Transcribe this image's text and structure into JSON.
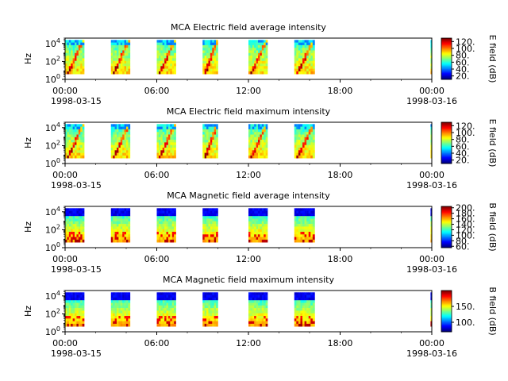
{
  "figure": {
    "x_tick_labels": [
      "00:00",
      "06:00",
      "12:00",
      "18:00",
      "00:00"
    ],
    "x_date_labels": [
      "1998-03-15",
      "1998-03-16"
    ],
    "ylabel": "Hz",
    "y_tick_labels": [
      "10^0",
      "10^2",
      "10^4"
    ]
  },
  "chart_data": [
    {
      "type": "heatmap",
      "title": "MCA  Electric field average intensity",
      "x_range": [
        "1998-03-15 00:00",
        "1998-03-16 00:00"
      ],
      "y_scale": "log",
      "y_range": [
        1,
        40000
      ],
      "ylabel": "Hz",
      "colorbar": {
        "label": "E field (dB)",
        "ticks": [
          20,
          40,
          60,
          80,
          100,
          120
        ],
        "range": [
          10,
          130
        ]
      },
      "passes": [
        {
          "start": "1998-03-15 00:00",
          "end": "1998-03-15 01:15"
        },
        {
          "start": "1998-03-15 03:00",
          "end": "1998-03-15 04:15"
        },
        {
          "start": "1998-03-15 06:00",
          "end": "1998-03-15 07:15"
        },
        {
          "start": "1998-03-15 09:00",
          "end": "1998-03-15 10:00"
        },
        {
          "start": "1998-03-15 12:00",
          "end": "1998-03-15 13:15"
        },
        {
          "start": "1998-03-15 15:00",
          "end": "1998-03-15 16:20"
        },
        {
          "start": "1998-03-15 23:55",
          "end": "1998-03-16 00:00"
        }
      ],
      "style": "electric"
    },
    {
      "type": "heatmap",
      "title": "MCA  Electric field maximum intensity",
      "x_range": [
        "1998-03-15 00:00",
        "1998-03-16 00:00"
      ],
      "y_scale": "log",
      "y_range": [
        1,
        40000
      ],
      "ylabel": "Hz",
      "colorbar": {
        "label": "E field (dB)",
        "ticks": [
          20,
          40,
          60,
          80,
          100,
          120
        ],
        "range": [
          10,
          130
        ]
      },
      "passes": [
        {
          "start": "1998-03-15 00:00",
          "end": "1998-03-15 01:15"
        },
        {
          "start": "1998-03-15 03:00",
          "end": "1998-03-15 04:15"
        },
        {
          "start": "1998-03-15 06:00",
          "end": "1998-03-15 07:15"
        },
        {
          "start": "1998-03-15 09:00",
          "end": "1998-03-15 10:00"
        },
        {
          "start": "1998-03-15 12:00",
          "end": "1998-03-15 13:15"
        },
        {
          "start": "1998-03-15 15:00",
          "end": "1998-03-15 16:20"
        },
        {
          "start": "1998-03-15 23:55",
          "end": "1998-03-16 00:00"
        }
      ],
      "style": "electric"
    },
    {
      "type": "heatmap",
      "title": "MCA  Magnetic field average intensity",
      "x_range": [
        "1998-03-15 00:00",
        "1998-03-16 00:00"
      ],
      "y_scale": "log",
      "y_range": [
        1,
        40000
      ],
      "ylabel": "Hz",
      "colorbar": {
        "label": "B field (dB)",
        "ticks": [
          60,
          80,
          100,
          120,
          140,
          160,
          180,
          200
        ],
        "range": [
          55,
          205
        ]
      },
      "passes": [
        {
          "start": "1998-03-15 00:00",
          "end": "1998-03-15 01:15"
        },
        {
          "start": "1998-03-15 03:00",
          "end": "1998-03-15 04:15"
        },
        {
          "start": "1998-03-15 06:00",
          "end": "1998-03-15 07:15"
        },
        {
          "start": "1998-03-15 09:00",
          "end": "1998-03-15 10:00"
        },
        {
          "start": "1998-03-15 12:00",
          "end": "1998-03-15 13:15"
        },
        {
          "start": "1998-03-15 15:00",
          "end": "1998-03-15 16:20"
        },
        {
          "start": "1998-03-15 23:55",
          "end": "1998-03-16 00:00"
        }
      ],
      "style": "magnetic"
    },
    {
      "type": "heatmap",
      "title": "MCA  Magnetic field maximum intensity",
      "x_range": [
        "1998-03-15 00:00",
        "1998-03-16 00:00"
      ],
      "y_scale": "log",
      "y_range": [
        1,
        40000
      ],
      "ylabel": "Hz",
      "colorbar": {
        "label": "B field (dB)",
        "ticks": [
          100,
          150
        ],
        "range": [
          70,
          200
        ]
      },
      "passes": [
        {
          "start": "1998-03-15 00:00",
          "end": "1998-03-15 01:15"
        },
        {
          "start": "1998-03-15 03:00",
          "end": "1998-03-15 04:15"
        },
        {
          "start": "1998-03-15 06:00",
          "end": "1998-03-15 07:15"
        },
        {
          "start": "1998-03-15 09:00",
          "end": "1998-03-15 10:00"
        },
        {
          "start": "1998-03-15 12:00",
          "end": "1998-03-15 13:15"
        },
        {
          "start": "1998-03-15 15:00",
          "end": "1998-03-15 16:20"
        },
        {
          "start": "1998-03-15 23:55",
          "end": "1998-03-16 00:00"
        }
      ],
      "style": "magnetic"
    }
  ]
}
